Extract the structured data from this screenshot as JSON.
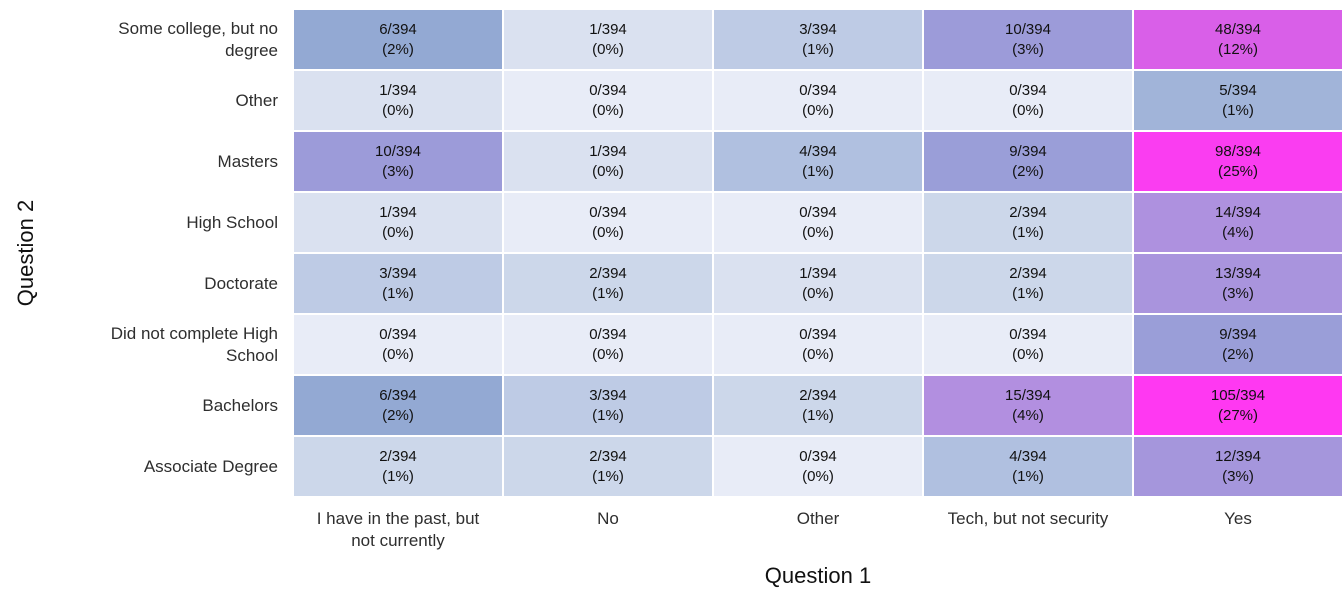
{
  "chart_data": {
    "type": "heatmap",
    "title": "",
    "xlabel": "Question 1",
    "ylabel": "Question 2",
    "x_categories": [
      "I have in the past, but not currently",
      "No",
      "Other",
      "Tech, but not security",
      "Yes"
    ],
    "y_categories": [
      "Some college, but no degree",
      "Other",
      "Masters",
      "High School",
      "Doctorate",
      "Did not complete High School",
      "Bachelors",
      "Associate Degree"
    ],
    "denominator": 394,
    "cell_label_format": "count/394 newline (pct%)",
    "rows": [
      {
        "label": "Some college, but no degree",
        "cells": [
          {
            "count": 6,
            "pct": 2
          },
          {
            "count": 1,
            "pct": 0
          },
          {
            "count": 3,
            "pct": 1
          },
          {
            "count": 10,
            "pct": 3
          },
          {
            "count": 48,
            "pct": 12
          }
        ]
      },
      {
        "label": "Other",
        "cells": [
          {
            "count": 1,
            "pct": 0
          },
          {
            "count": 0,
            "pct": 0
          },
          {
            "count": 0,
            "pct": 0
          },
          {
            "count": 0,
            "pct": 0
          },
          {
            "count": 5,
            "pct": 1
          }
        ]
      },
      {
        "label": "Masters",
        "cells": [
          {
            "count": 10,
            "pct": 3
          },
          {
            "count": 1,
            "pct": 0
          },
          {
            "count": 4,
            "pct": 1
          },
          {
            "count": 9,
            "pct": 2
          },
          {
            "count": 98,
            "pct": 25
          }
        ]
      },
      {
        "label": "High School",
        "cells": [
          {
            "count": 1,
            "pct": 0
          },
          {
            "count": 0,
            "pct": 0
          },
          {
            "count": 0,
            "pct": 0
          },
          {
            "count": 2,
            "pct": 1
          },
          {
            "count": 14,
            "pct": 4
          }
        ]
      },
      {
        "label": "Doctorate",
        "cells": [
          {
            "count": 3,
            "pct": 1
          },
          {
            "count": 2,
            "pct": 1
          },
          {
            "count": 1,
            "pct": 0
          },
          {
            "count": 2,
            "pct": 1
          },
          {
            "count": 13,
            "pct": 3
          }
        ]
      },
      {
        "label": "Did not complete High School",
        "cells": [
          {
            "count": 0,
            "pct": 0
          },
          {
            "count": 0,
            "pct": 0
          },
          {
            "count": 0,
            "pct": 0
          },
          {
            "count": 0,
            "pct": 0
          },
          {
            "count": 9,
            "pct": 2
          }
        ]
      },
      {
        "label": "Bachelors",
        "cells": [
          {
            "count": 6,
            "pct": 2
          },
          {
            "count": 3,
            "pct": 1
          },
          {
            "count": 2,
            "pct": 1
          },
          {
            "count": 15,
            "pct": 4
          },
          {
            "count": 105,
            "pct": 27
          }
        ]
      },
      {
        "label": "Associate Degree",
        "cells": [
          {
            "count": 2,
            "pct": 1
          },
          {
            "count": 2,
            "pct": 1
          },
          {
            "count": 0,
            "pct": 0
          },
          {
            "count": 4,
            "pct": 1
          },
          {
            "count": 12,
            "pct": 3
          }
        ]
      }
    ],
    "colorscale": {
      "vmax": 105,
      "stops": [
        {
          "t": 0.0,
          "color": "#e8ecf7"
        },
        {
          "t": 0.019,
          "color": "#ccd7ea"
        },
        {
          "t": 0.038,
          "color": "#b0c0e0"
        },
        {
          "t": 0.057,
          "color": "#93a9d3"
        },
        {
          "t": 0.095,
          "color": "#9c9bd9"
        },
        {
          "t": 0.143,
          "color": "#b28fe0"
        },
        {
          "t": 0.457,
          "color": "#d95fe8"
        },
        {
          "t": 1.0,
          "color": "#ff38f2"
        }
      ]
    },
    "text_color": "#111111",
    "background_color": "#ffffff",
    "legend": "none",
    "grid": "off"
  }
}
